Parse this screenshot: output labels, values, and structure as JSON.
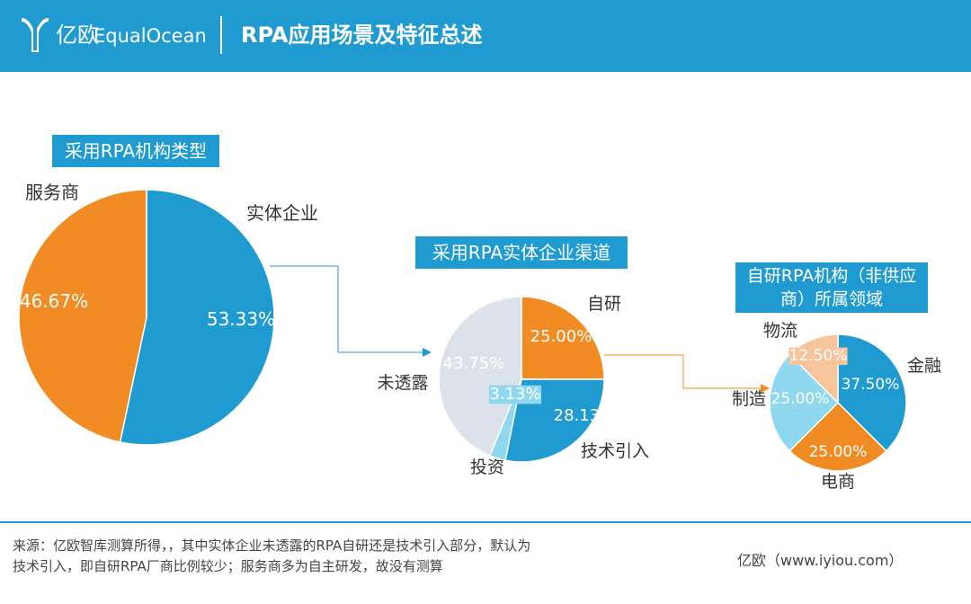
{
  "header": {
    "brand_cn": "亿欧",
    "brand_en": "EqualOcean",
    "title": "RPA应用场景及特征总述"
  },
  "colors": {
    "blue": "#1f9bd2",
    "orange": "#f08c23",
    "grey": "#dbe2ea",
    "light_blue": "#8fd8ef",
    "peach": "#f8c49c"
  },
  "chart_data": [
    {
      "type": "pie",
      "title": "采用RPA机构类型",
      "labels": [
        "实体企业",
        "服务商"
      ],
      "values": [
        53.33,
        46.67
      ],
      "value_labels": [
        "53.33%",
        "46.67%"
      ]
    },
    {
      "type": "pie",
      "title": "采用RPA实体企业渠道",
      "labels": [
        "自研",
        "技术引入",
        "投资",
        "未透露"
      ],
      "values": [
        25.0,
        28.13,
        3.13,
        43.75
      ],
      "value_labels": [
        "25.00%",
        "28.13%",
        "3.13%",
        "43.75%"
      ]
    },
    {
      "type": "pie",
      "title": "自研RPA机构（非供应商）所属领域",
      "title_lines": [
        "自研RPA机构（非供应",
        "商）所属领域"
      ],
      "labels": [
        "金融",
        "电商",
        "制造",
        "物流"
      ],
      "values": [
        37.5,
        25.0,
        25.0,
        12.5
      ],
      "value_labels": [
        "37.50%",
        "25.00%",
        "25.00%",
        "12.50%"
      ]
    }
  ],
  "footer": {
    "note": "来源：亿欧智库测算所得，，其中实体企业未透露的RPA自研还是技术引入部分，默认为技术引入，即自研RPA厂商比例较少；服务商多为自主研发，故没有测算",
    "source": "亿欧（www.iyiou.com）"
  }
}
